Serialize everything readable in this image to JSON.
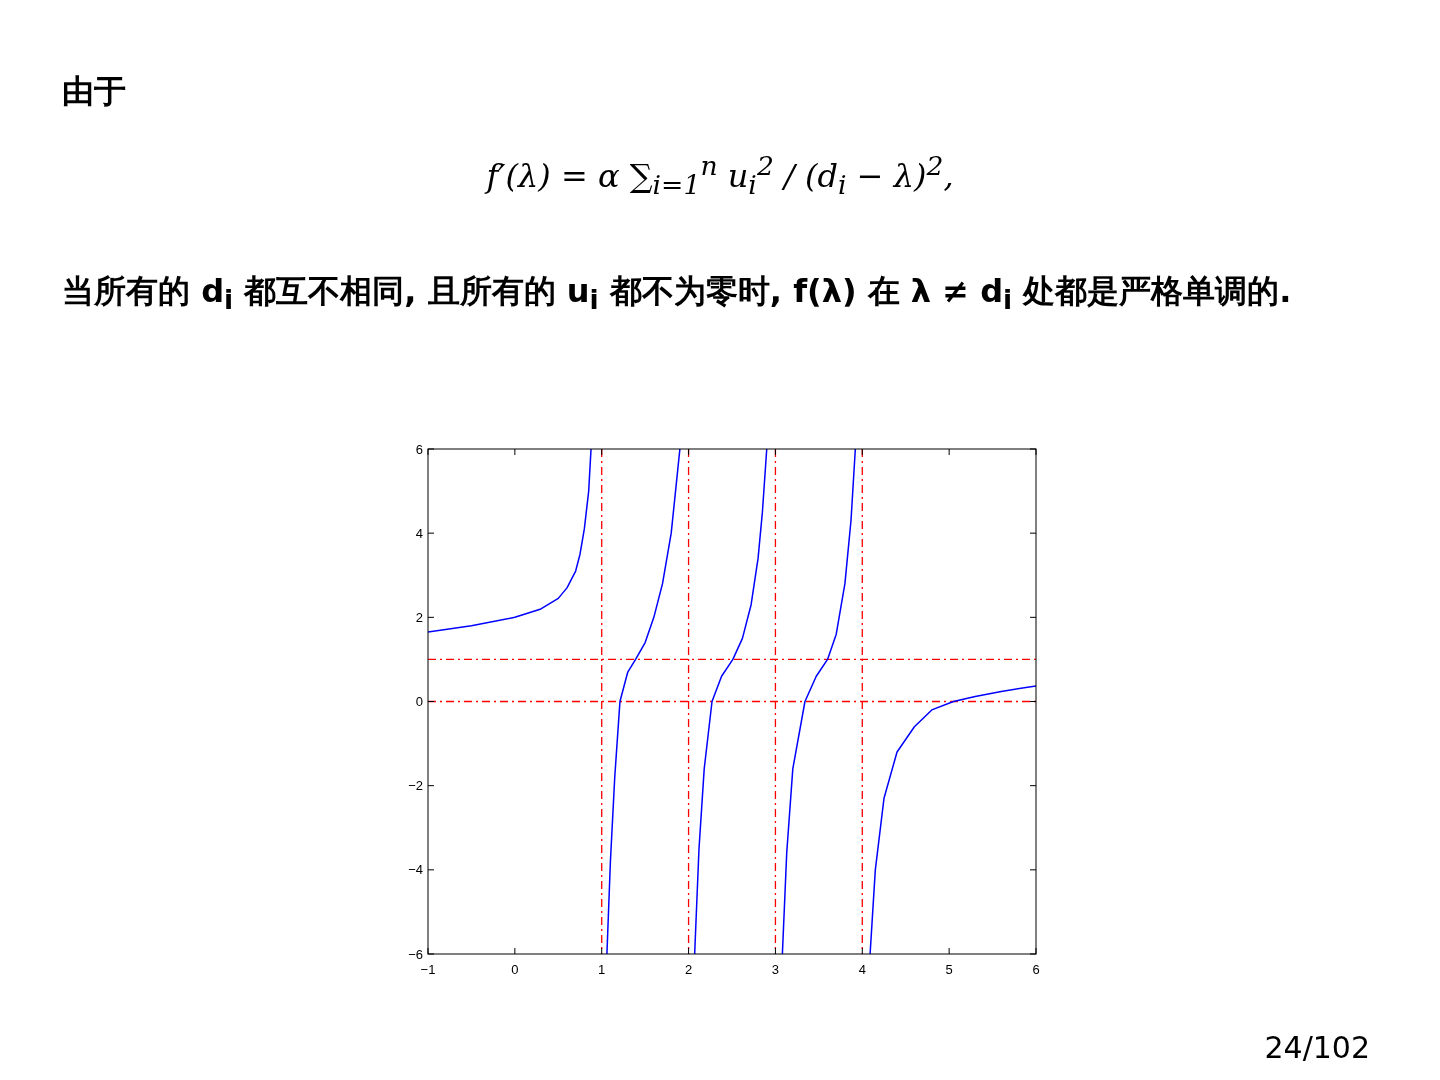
{
  "chart_data": {
    "type": "line",
    "annotations": [
      "由于",
      "f′(λ) = α ∑$_{i=1}$$^{n}$ u$_{i}$$^{2}$ / (d$_{i}$ − λ)$^{2}$,",
      "当所有的 d$_{i}$ 都互不相同, 且所有的 u$_{i}$ 都不为零时, f(λ) 在 λ ≠ d$_{i}$ 处都是严格单调的.",
      "24/102"
    ],
    "series": [
      {
        "color": "#0000ff",
        "x": [
          -1,
          -0.5,
          0,
          0.3,
          0.5,
          0.6,
          0.7,
          0.75,
          0.8,
          0.85,
          0.877
        ],
        "values": [
          1.65,
          1.8,
          2.0,
          2.2,
          2.45,
          2.7,
          3.1,
          3.5,
          4.1,
          5.0,
          6
        ]
      },
      {
        "color": "#0000ff",
        "x": [
          1.06,
          1.1,
          1.15,
          1.21,
          1.3,
          1.39,
          1.5,
          1.6,
          1.7,
          1.8,
          1.85,
          1.9
        ],
        "values": [
          -6,
          -3.8,
          -1.8,
          0,
          0.7,
          1,
          1.4,
          2.0,
          2.8,
          4.0,
          5.0,
          6
        ]
      },
      {
        "color": "#0000ff",
        "x": [
          2.07,
          2.12,
          2.18,
          2.27,
          2.38,
          2.51,
          2.62,
          2.72,
          2.8,
          2.85,
          2.9
        ],
        "values": [
          -6,
          -3.5,
          -1.6,
          0,
          0.6,
          1,
          1.5,
          2.3,
          3.4,
          4.5,
          6
        ]
      },
      {
        "color": "#0000ff",
        "x": [
          3.08,
          3.13,
          3.2,
          3.34,
          3.47,
          3.6,
          3.7,
          3.8,
          3.87,
          3.92
        ],
        "values": [
          -6,
          -3.6,
          -1.6,
          0,
          0.6,
          1,
          1.6,
          2.8,
          4.3,
          6
        ]
      },
      {
        "color": "#0000ff",
        "x": [
          4.09,
          4.15,
          4.25,
          4.4,
          4.6,
          4.8,
          5.05,
          5.3,
          5.6,
          6
        ],
        "values": [
          -6,
          -4,
          -2.3,
          -1.2,
          -0.6,
          -0.2,
          0,
          0.12,
          0.24,
          0.37
        ]
      }
    ],
    "xlim": [
      -1,
      6
    ],
    "xticks": [
      {
        "value": -1,
        "label": "−1"
      },
      0,
      1,
      2,
      3,
      4,
      5,
      6
    ],
    "ylim": [
      -6,
      6
    ],
    "yticks": [
      {
        "value": -6,
        "label": "−6"
      },
      {
        "value": -4,
        "label": "−4"
      },
      {
        "value": -2,
        "label": "−2"
      },
      0,
      2,
      4,
      6
    ],
    "ref_lines": [
      {
        "axis": "x",
        "value": 1,
        "color": "#ff0000",
        "line_style": "dashed"
      },
      {
        "axis": "x",
        "value": 2,
        "color": "#ff0000",
        "line_style": "dashed"
      },
      {
        "axis": "x",
        "value": 3,
        "color": "#ff0000",
        "line_style": "dashed"
      },
      {
        "axis": "x",
        "value": 4,
        "color": "#ff0000",
        "line_style": "dashed"
      },
      {
        "axis": "y",
        "value": 0,
        "color": "#ff0000",
        "line_style": "dashed"
      },
      {
        "axis": "y",
        "value": 1,
        "color": "#ff0000",
        "line_style": "dashed"
      }
    ],
    "grid": false,
    "line_style": "solid"
  }
}
